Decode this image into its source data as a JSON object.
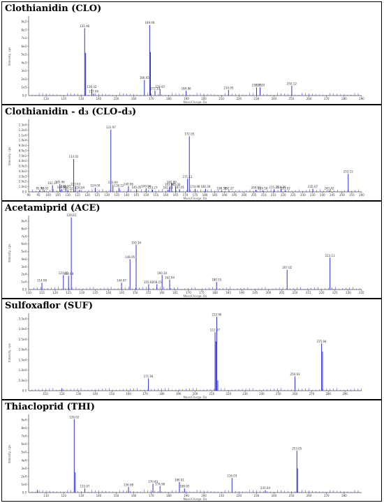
{
  "x_axis_label": "Mass/Charge, Da",
  "y_axis_label": "Intensity, cps",
  "bar_color": "#2f2fd6",
  "chart_data": [
    {
      "type": "bar",
      "title": "Clothianidin (CLO)",
      "xlabel": "Mass/Charge, Da",
      "ylabel": "Intensity, cps",
      "xlim": [
        100,
        290
      ],
      "xticks": [
        110,
        120,
        130,
        140,
        150,
        160,
        170,
        180,
        190,
        200,
        210,
        220,
        230,
        240,
        250,
        260,
        270,
        280,
        290
      ],
      "ylim": [
        0,
        9000
      ],
      "yticks": [
        {
          "v": 1000,
          "l": "1e3"
        },
        {
          "v": 2000,
          "l": "2e3"
        },
        {
          "v": 3000,
          "l": "3e3"
        },
        {
          "v": 4000,
          "l": "4e3"
        },
        {
          "v": 5000,
          "l": "5e3"
        },
        {
          "v": 6000,
          "l": "6e3"
        },
        {
          "v": 7000,
          "l": "7e3"
        },
        {
          "v": 8000,
          "l": "8e3"
        },
        {
          "v": 9000,
          "l": "9e3"
        }
      ],
      "peaks": [
        {
          "x": 131.96,
          "y": 8200,
          "label": "131.96"
        },
        {
          "x": 132.5,
          "y": 5200
        },
        {
          "x": 136.02,
          "y": 800,
          "label": "136.02"
        },
        {
          "x": 137.04,
          "y": 250,
          "label": "137.04"
        },
        {
          "x": 166.05,
          "y": 1900,
          "label": "166.05"
        },
        {
          "x": 169.06,
          "y": 8600,
          "label": "169.06"
        },
        {
          "x": 169.5,
          "y": 5300
        },
        {
          "x": 172.1,
          "y": 600,
          "label": "172.10"
        },
        {
          "x": 174.97,
          "y": 800,
          "label": "174.97"
        },
        {
          "x": 189.86,
          "y": 600,
          "label": "189.86"
        },
        {
          "x": 214.05,
          "y": 700,
          "label": "214.05"
        },
        {
          "x": 230.03,
          "y": 1000,
          "label": "230.03"
        },
        {
          "x": 232.02,
          "y": 1000,
          "label": "232.02"
        },
        {
          "x": 250.12,
          "y": 1200,
          "label": "250.12"
        }
      ]
    },
    {
      "type": "bar",
      "title": "Clothianidin - d₃ (CLO-d₃)",
      "xlabel": "Mass/Charge, Da",
      "ylabel": "Intensity, cps",
      "xlim": [
        90,
        260
      ],
      "xticks": [
        90,
        95,
        100,
        105,
        110,
        115,
        120,
        125,
        130,
        135,
        140,
        145,
        150,
        155,
        160,
        165,
        170,
        175,
        180,
        185,
        190,
        195,
        200,
        205,
        210,
        215,
        220,
        225,
        230,
        235,
        240,
        245,
        250,
        255,
        260
      ],
      "ylim": [
        0,
        13000
      ],
      "yticks": [
        {
          "v": 1000,
          "l": "1.0e3"
        },
        {
          "v": 2000,
          "l": "2.0e3"
        },
        {
          "v": 3000,
          "l": "3.0e3"
        },
        {
          "v": 4000,
          "l": "4.0e3"
        },
        {
          "v": 5000,
          "l": "5.0e3"
        },
        {
          "v": 6000,
          "l": "6.0e3"
        },
        {
          "v": 7000,
          "l": "7.0e3"
        },
        {
          "v": 8000,
          "l": "8.0e3"
        },
        {
          "v": 9000,
          "l": "9.0e3"
        },
        {
          "v": 10000,
          "l": "1.0e4"
        },
        {
          "v": 11000,
          "l": "1.1e4"
        },
        {
          "v": 12000,
          "l": "1.2e4"
        },
        {
          "v": 13000,
          "l": "1.3e4"
        }
      ],
      "peaks": [
        {
          "x": 95.78,
          "y": 300,
          "label": "95.78"
        },
        {
          "x": 98.05,
          "y": 300,
          "label": "98.05"
        },
        {
          "x": 102.17,
          "y": 1300,
          "label": "102.17"
        },
        {
          "x": 105.96,
          "y": 1500,
          "label": "105.96"
        },
        {
          "x": 106.96,
          "y": 500,
          "label": "106.96"
        },
        {
          "x": 108.97,
          "y": 700,
          "label": "108.97"
        },
        {
          "x": 110.12,
          "y": 300,
          "label": "110.12"
        },
        {
          "x": 113.01,
          "y": 6400,
          "label": "113.01"
        },
        {
          "x": 113.93,
          "y": 1100,
          "label": "113.93"
        },
        {
          "x": 116.04,
          "y": 400,
          "label": "116.04"
        },
        {
          "x": 124.0,
          "y": 800,
          "label": "124.00"
        },
        {
          "x": 131.97,
          "y": 12100,
          "label": "131.97"
        },
        {
          "x": 133.04,
          "y": 1400,
          "label": "133.04"
        },
        {
          "x": 136.12,
          "y": 800,
          "label": "136.12"
        },
        {
          "x": 140.96,
          "y": 1100,
          "label": "140.96"
        },
        {
          "x": 145.05,
          "y": 500,
          "label": "145.05"
        },
        {
          "x": 149.96,
          "y": 700,
          "label": "149.96"
        },
        {
          "x": 153.27,
          "y": 400,
          "label": "153.27"
        },
        {
          "x": 161.13,
          "y": 400,
          "label": "161.13"
        },
        {
          "x": 161.97,
          "y": 1000,
          "label": "161.97"
        },
        {
          "x": 162.99,
          "y": 1500,
          "label": "162.99"
        },
        {
          "x": 165.0,
          "y": 1000,
          "label": "165.00"
        },
        {
          "x": 167.01,
          "y": 500,
          "label": "167.01"
        },
        {
          "x": 171.11,
          "y": 2500,
          "label": "171.11"
        },
        {
          "x": 172.05,
          "y": 10800,
          "label": "172.05"
        },
        {
          "x": 174.98,
          "y": 600,
          "label": "174.98"
        },
        {
          "x": 180.34,
          "y": 600,
          "label": "180.34"
        },
        {
          "x": 188.56,
          "y": 300,
          "label": "188.56"
        },
        {
          "x": 192.27,
          "y": 300,
          "label": "192.27"
        },
        {
          "x": 206.01,
          "y": 400,
          "label": "206.01"
        },
        {
          "x": 209.5,
          "y": 300,
          "label": "209.50"
        },
        {
          "x": 215.25,
          "y": 500,
          "label": "215.25"
        },
        {
          "x": 218.85,
          "y": 500,
          "label": "218.85"
        },
        {
          "x": 221.07,
          "y": 300,
          "label": "221.07"
        },
        {
          "x": 235.07,
          "y": 600,
          "label": "235.07"
        },
        {
          "x": 243.42,
          "y": 300,
          "label": "243.42"
        },
        {
          "x": 253.15,
          "y": 3500,
          "label": "253.15"
        }
      ]
    },
    {
      "type": "bar",
      "title": "Acetamiprid (ACE)",
      "xlabel": "Mass/Charge, Da",
      "ylabel": "Intensity, cps",
      "xlim": [
        110,
        235
      ],
      "xticks": [
        110,
        115,
        120,
        125,
        130,
        135,
        140,
        145,
        150,
        155,
        160,
        165,
        170,
        175,
        180,
        185,
        190,
        195,
        200,
        205,
        210,
        215,
        220,
        225,
        230,
        235
      ],
      "ylim": [
        0,
        9000
      ],
      "yticks": [
        {
          "v": 1000,
          "l": "1e4"
        },
        {
          "v": 2000,
          "l": "2e4"
        },
        {
          "v": 3000,
          "l": "3e4"
        },
        {
          "v": 4000,
          "l": "4e4"
        },
        {
          "v": 5000,
          "l": "5e4"
        },
        {
          "v": 6000,
          "l": "6e4"
        },
        {
          "v": 7000,
          "l": "7e4"
        },
        {
          "v": 8000,
          "l": "8e4"
        },
        {
          "v": 9000,
          "l": "9e4"
        }
      ],
      "peaks": [
        {
          "x": 114.98,
          "y": 900,
          "label": "114.98"
        },
        {
          "x": 123.05,
          "y": 1900,
          "label": "123.05"
        },
        {
          "x": 124.98,
          "y": 1800,
          "label": "124.98"
        },
        {
          "x": 126.02,
          "y": 9500,
          "label": "126.02"
        },
        {
          "x": 144.87,
          "y": 900,
          "label": "144.87"
        },
        {
          "x": 148.05,
          "y": 4000,
          "label": "148.05"
        },
        {
          "x": 150.36,
          "y": 5900,
          "label": "150.36"
        },
        {
          "x": 155.03,
          "y": 700,
          "label": "155.03"
        },
        {
          "x": 158.15,
          "y": 700,
          "label": "158.15"
        },
        {
          "x": 160.1,
          "y": 1900,
          "label": "160.10"
        },
        {
          "x": 162.94,
          "y": 1300,
          "label": "162.94"
        },
        {
          "x": 180.55,
          "y": 1000,
          "label": "180.55"
        },
        {
          "x": 207.02,
          "y": 2600,
          "label": "207.02"
        },
        {
          "x": 223.11,
          "y": 4200,
          "label": "223.11"
        }
      ]
    },
    {
      "type": "bar",
      "title": "Sulfoxaflor (SUF)",
      "xlabel": "Mass/Charge, Da",
      "ylabel": "Intensity, cps",
      "xlim": [
        100,
        300
      ],
      "xticks": [
        110,
        120,
        130,
        140,
        150,
        160,
        170,
        180,
        190,
        200,
        210,
        220,
        230,
        240,
        250,
        260,
        270,
        280,
        290
      ],
      "ylim": [
        0,
        3500
      ],
      "yticks": [
        {
          "v": 500,
          "l": "5.0e3"
        },
        {
          "v": 1000,
          "l": "1.0e4"
        },
        {
          "v": 1500,
          "l": "1.5e4"
        },
        {
          "v": 2000,
          "l": "2.0e4"
        },
        {
          "v": 2500,
          "l": "2.5e4"
        },
        {
          "v": 3000,
          "l": "3.0e4"
        },
        {
          "v": 3500,
          "l": "3.5e4"
        }
      ],
      "peaks": [
        {
          "x": 120.0,
          "y": 120
        },
        {
          "x": 171.94,
          "y": 600,
          "label": "171.94"
        },
        {
          "x": 211.97,
          "y": 2850,
          "label": "211.97"
        },
        {
          "x": 212.5,
          "y": 2400
        },
        {
          "x": 212.96,
          "y": 3600,
          "label": "212.96"
        },
        {
          "x": 213.6,
          "y": 500
        },
        {
          "x": 259.93,
          "y": 700,
          "label": "259.93"
        },
        {
          "x": 275.94,
          "y": 2300,
          "label": "275.94"
        },
        {
          "x": 276.5,
          "y": 1900
        }
      ]
    },
    {
      "type": "bar",
      "title": "Thiacloprid (THI)",
      "xlabel": "Mass/Charge, Da",
      "ylabel": "Intensity, cps",
      "xlim": [
        100,
        290
      ],
      "xticks": [
        110,
        120,
        130,
        140,
        150,
        160,
        170,
        180,
        190,
        200,
        210,
        220,
        230,
        240,
        250,
        260,
        270,
        280
      ],
      "ylim": [
        0,
        9000
      ],
      "yticks": [
        {
          "v": 1000,
          "l": "1e4"
        },
        {
          "v": 2000,
          "l": "2e4"
        },
        {
          "v": 3000,
          "l": "3e4"
        },
        {
          "v": 4000,
          "l": "4e4"
        },
        {
          "v": 5000,
          "l": "5e4"
        },
        {
          "v": 6000,
          "l": "6e4"
        },
        {
          "v": 7000,
          "l": "7e4"
        },
        {
          "v": 8000,
          "l": "8e4"
        },
        {
          "v": 9000,
          "l": "9e4"
        }
      ],
      "peaks": [
        {
          "x": 105.0,
          "y": 300
        },
        {
          "x": 126.02,
          "y": 9100,
          "label": "126.02"
        },
        {
          "x": 126.6,
          "y": 2500
        },
        {
          "x": 132.07,
          "y": 500,
          "label": "132.07"
        },
        {
          "x": 156.98,
          "y": 700,
          "label": "156.98"
        },
        {
          "x": 170.93,
          "y": 1100,
          "label": "170.93"
        },
        {
          "x": 174.96,
          "y": 800,
          "label": "174.96"
        },
        {
          "x": 186.01,
          "y": 1300,
          "label": "186.01"
        },
        {
          "x": 188.95,
          "y": 500,
          "label": "188.95"
        },
        {
          "x": 216.03,
          "y": 1800,
          "label": "216.03"
        },
        {
          "x": 235.04,
          "y": 300,
          "label": "235.04"
        },
        {
          "x": 253.05,
          "y": 5200,
          "label": "253.05"
        },
        {
          "x": 253.4,
          "y": 3000
        }
      ]
    }
  ]
}
